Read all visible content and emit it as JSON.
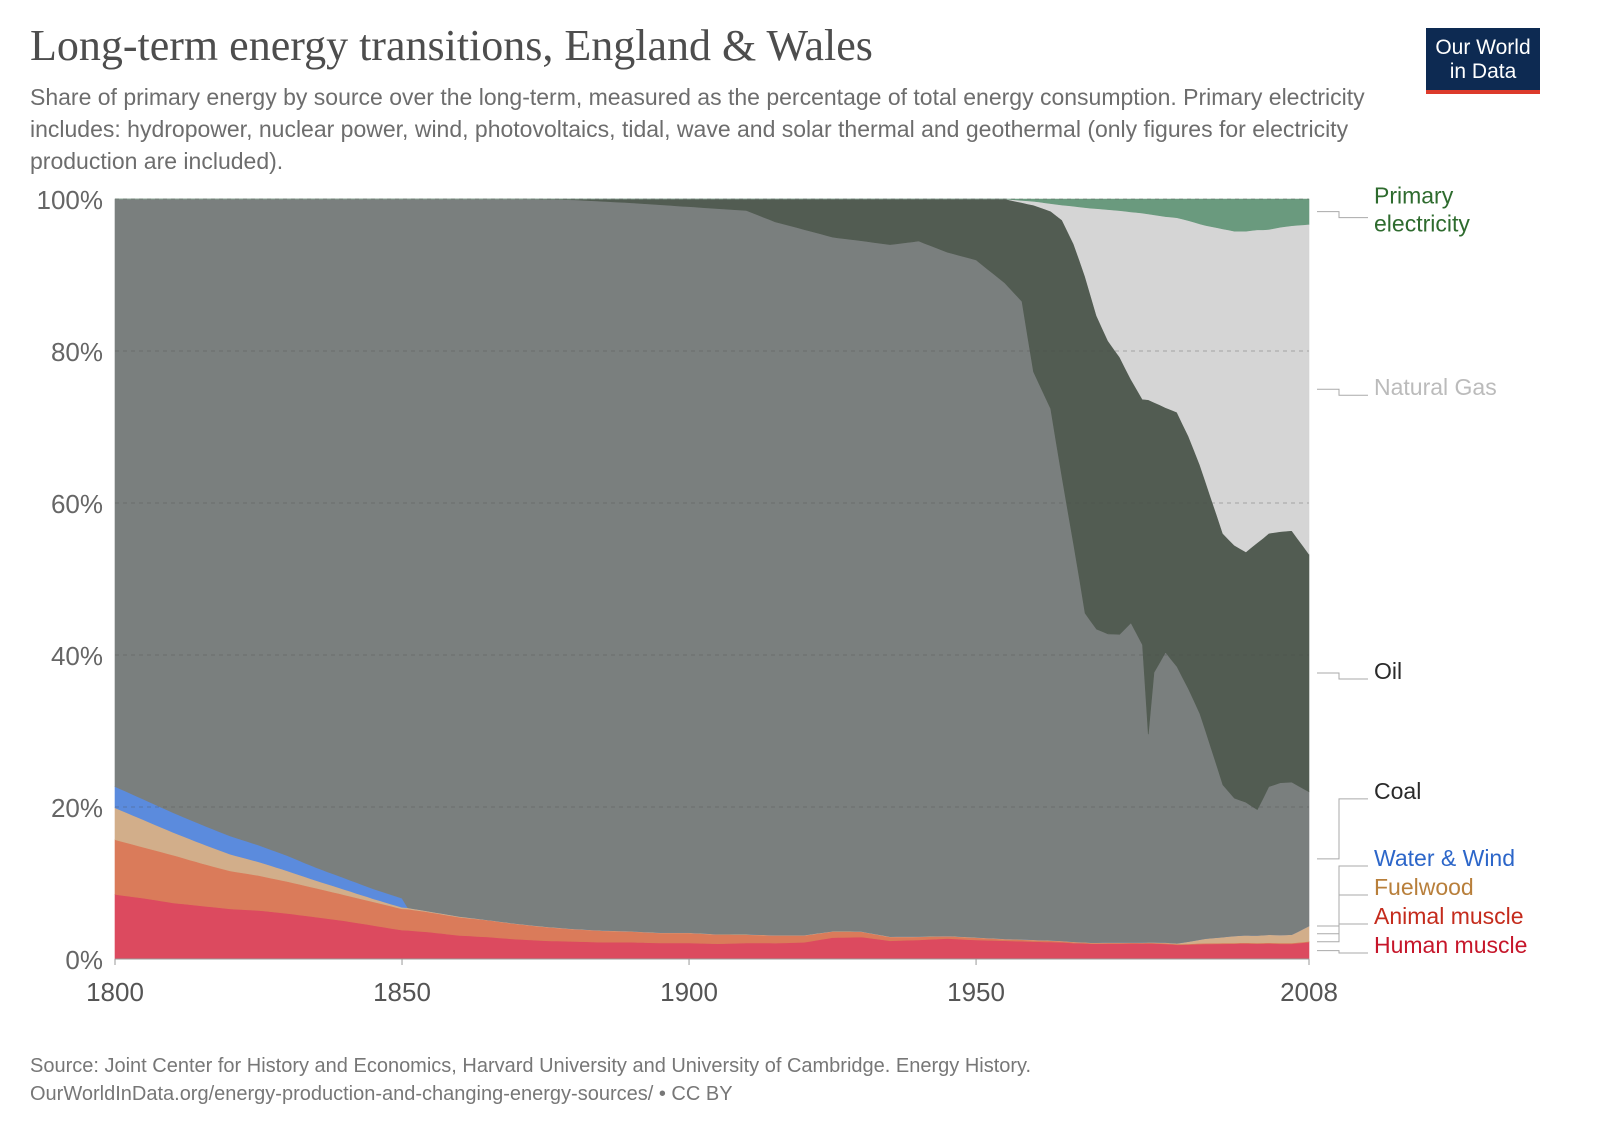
{
  "title": "Long-term energy transitions, England & Wales",
  "subtitle": "Share of primary energy by source over the long-term, measured as the percentage of total energy consumption. Primary electricity includes: hydropower, nuclear power, wind, photovoltaics, tidal, wave and solar thermal and geothermal (only figures for electricity production are included).",
  "logo": {
    "line1": "Our World",
    "line2": "in Data"
  },
  "footer": {
    "source": "Source: Joint Center for History and Economics, Harvard University and University of Cambridge. Energy History.",
    "url": "OurWorldInData.org/energy-production-and-changing-energy-sources/ • CC BY"
  },
  "chart_data": {
    "type": "area",
    "stacked": true,
    "x_label": "",
    "y_label": "",
    "x_range": [
      1800,
      2008
    ],
    "y_range": [
      0,
      100
    ],
    "x_ticks": [
      1800,
      1850,
      1900,
      1950,
      2008
    ],
    "y_ticks": [
      "0%",
      "20%",
      "40%",
      "60%",
      "80%",
      "100%"
    ],
    "grid": "horizontal dashed",
    "legend_position": "right (inline labels)",
    "series": [
      {
        "name": "Human muscle",
        "color": "#dc4a5f",
        "label_color": "#c6162a",
        "points": [
          [
            1800,
            8.5
          ],
          [
            1805,
            8
          ],
          [
            1810,
            7.4
          ],
          [
            1815,
            7
          ],
          [
            1820,
            6.6
          ],
          [
            1825,
            6.4
          ],
          [
            1830,
            6
          ],
          [
            1835,
            5.5
          ],
          [
            1840,
            5
          ],
          [
            1845,
            4.4
          ],
          [
            1850,
            3.8
          ],
          [
            1855,
            3.5
          ],
          [
            1860,
            3.1
          ],
          [
            1865,
            2.9
          ],
          [
            1870,
            2.6
          ],
          [
            1875,
            2.4
          ],
          [
            1880,
            2.3
          ],
          [
            1885,
            2.2
          ],
          [
            1890,
            2.2
          ],
          [
            1895,
            2.1
          ],
          [
            1900,
            2.1
          ],
          [
            1905,
            2
          ],
          [
            1910,
            2.1
          ],
          [
            1915,
            2.1
          ],
          [
            1920,
            2.2
          ],
          [
            1925,
            2.8
          ],
          [
            1930,
            2.9
          ],
          [
            1935,
            2.4
          ],
          [
            1940,
            2.5
          ],
          [
            1945,
            2.7
          ],
          [
            1950,
            2.5
          ],
          [
            1955,
            2.4
          ],
          [
            1960,
            2.3
          ],
          [
            1965,
            2.2
          ],
          [
            1970,
            2
          ],
          [
            1975,
            2
          ],
          [
            1980,
            2.1
          ],
          [
            1985,
            1.9
          ],
          [
            1990,
            2
          ],
          [
            1995,
            2
          ],
          [
            2000,
            2
          ],
          [
            2005,
            2
          ],
          [
            2008,
            2.2
          ]
        ]
      },
      {
        "name": "Animal muscle",
        "color": "#da7b5a",
        "label_color": "#c42b1c",
        "points": [
          [
            1800,
            7.2
          ],
          [
            1805,
            6.7
          ],
          [
            1810,
            6.3
          ],
          [
            1815,
            5.6
          ],
          [
            1820,
            5
          ],
          [
            1825,
            4.6
          ],
          [
            1830,
            4.2
          ],
          [
            1835,
            3.8
          ],
          [
            1840,
            3.4
          ],
          [
            1845,
            3.1
          ],
          [
            1850,
            2.8
          ],
          [
            1855,
            2.6
          ],
          [
            1860,
            2.4
          ],
          [
            1865,
            2.2
          ],
          [
            1870,
            2
          ],
          [
            1875,
            1.8
          ],
          [
            1880,
            1.6
          ],
          [
            1885,
            1.5
          ],
          [
            1890,
            1.4
          ],
          [
            1895,
            1.3
          ],
          [
            1900,
            1.3
          ],
          [
            1905,
            1.2
          ],
          [
            1910,
            1.1
          ],
          [
            1915,
            1
          ],
          [
            1920,
            0.9
          ],
          [
            1925,
            0.8
          ],
          [
            1930,
            0.7
          ],
          [
            1935,
            0.5
          ],
          [
            1940,
            0.4
          ],
          [
            1945,
            0.3
          ],
          [
            1950,
            0.3
          ],
          [
            1955,
            0.2
          ],
          [
            1960,
            0.2
          ],
          [
            1965,
            0.15
          ],
          [
            1970,
            0.1
          ],
          [
            1975,
            0.1
          ],
          [
            1980,
            0.1
          ],
          [
            1985,
            0.1
          ],
          [
            1990,
            0.1
          ],
          [
            1995,
            0.1
          ],
          [
            2000,
            0.1
          ],
          [
            2005,
            0.1
          ],
          [
            2008,
            0.1
          ]
        ]
      },
      {
        "name": "Fuelwood",
        "color": "#d2ae8a",
        "label_color": "#b87f3b",
        "points": [
          [
            1800,
            4.2
          ],
          [
            1805,
            3.6
          ],
          [
            1810,
            3
          ],
          [
            1815,
            2.6
          ],
          [
            1820,
            2.2
          ],
          [
            1825,
            1.8
          ],
          [
            1830,
            1.4
          ],
          [
            1835,
            1
          ],
          [
            1840,
            0.7
          ],
          [
            1845,
            0.4
          ],
          [
            1850,
            0.2
          ],
          [
            1855,
            0.1
          ],
          [
            1860,
            0.1
          ],
          [
            1865,
            0.05
          ],
          [
            1870,
            0.05
          ],
          [
            1875,
            0.05
          ],
          [
            1880,
            0.05
          ],
          [
            1885,
            0.05
          ],
          [
            1890,
            0.05
          ],
          [
            1895,
            0.05
          ],
          [
            1900,
            0.05
          ],
          [
            1905,
            0.05
          ],
          [
            1910,
            0.05
          ],
          [
            1915,
            0.05
          ],
          [
            1920,
            0.05
          ],
          [
            1925,
            0.05
          ],
          [
            1930,
            0.05
          ],
          [
            1935,
            0.05
          ],
          [
            1940,
            0.05
          ],
          [
            1945,
            0.05
          ],
          [
            1950,
            0.05
          ],
          [
            1955,
            0.05
          ],
          [
            1960,
            0.05
          ],
          [
            1965,
            0.05
          ],
          [
            1970,
            0.05
          ],
          [
            1975,
            0.05
          ],
          [
            1980,
            0.05
          ],
          [
            1985,
            0.1
          ],
          [
            1990,
            0.6
          ],
          [
            1995,
            0.9
          ],
          [
            2000,
            1
          ],
          [
            2005,
            1.1
          ],
          [
            2008,
            2
          ]
        ]
      },
      {
        "name": "Water & Wind",
        "color": "#5b8bdd",
        "label_color": "#2c66c9",
        "points": [
          [
            1800,
            2.8
          ],
          [
            1805,
            2.7
          ],
          [
            1810,
            2.6
          ],
          [
            1815,
            2.5
          ],
          [
            1820,
            2.4
          ],
          [
            1825,
            2.2
          ],
          [
            1830,
            2
          ],
          [
            1835,
            1.7
          ],
          [
            1840,
            1.5
          ],
          [
            1845,
            1.3
          ],
          [
            1850,
            1.2
          ],
          [
            1851,
            0
          ],
          [
            2008,
            0
          ]
        ]
      },
      {
        "name": "Coal",
        "color": "#7a7f7e",
        "label_color": "#2a2a2a",
        "points": [
          [
            1800,
            77.3
          ],
          [
            1810,
            80.7
          ],
          [
            1820,
            83.8
          ],
          [
            1830,
            86.4
          ],
          [
            1840,
            89
          ],
          [
            1850,
            92
          ],
          [
            1860,
            94.4
          ],
          [
            1870,
            95.3
          ],
          [
            1880,
            95.5
          ],
          [
            1890,
            95.5
          ],
          [
            1900,
            95
          ],
          [
            1910,
            94.8
          ],
          [
            1915,
            94
          ],
          [
            1920,
            93
          ],
          [
            1925,
            91
          ],
          [
            1930,
            91
          ],
          [
            1935,
            91
          ],
          [
            1940,
            91
          ],
          [
            1945,
            90
          ],
          [
            1950,
            89
          ],
          [
            1955,
            86
          ],
          [
            1958,
            84
          ],
          [
            1960,
            75
          ],
          [
            1963,
            70
          ],
          [
            1965,
            61
          ],
          [
            1967,
            53
          ],
          [
            1969,
            43
          ],
          [
            1971,
            41
          ],
          [
            1973,
            40
          ],
          [
            1975,
            40
          ],
          [
            1977,
            42
          ],
          [
            1979,
            40
          ],
          [
            1980,
            28
          ],
          [
            1981,
            36
          ],
          [
            1983,
            38
          ],
          [
            1985,
            37
          ],
          [
            1987,
            34
          ],
          [
            1989,
            30
          ],
          [
            1991,
            25
          ],
          [
            1993,
            20
          ],
          [
            1995,
            18
          ],
          [
            1997,
            17
          ],
          [
            1999,
            16.5
          ],
          [
            2001,
            19
          ],
          [
            2003,
            20
          ],
          [
            2005,
            20
          ],
          [
            2008,
            17.5
          ]
        ]
      },
      {
        "name": "Oil",
        "color": "#525c52",
        "label_color": "#2a2a2a",
        "points": [
          [
            1800,
            0
          ],
          [
            1870,
            0
          ],
          [
            1880,
            0.1
          ],
          [
            1890,
            0.5
          ],
          [
            1900,
            1
          ],
          [
            1910,
            1.5
          ],
          [
            1915,
            3
          ],
          [
            1920,
            4
          ],
          [
            1925,
            5
          ],
          [
            1930,
            5.5
          ],
          [
            1935,
            6
          ],
          [
            1940,
            5.5
          ],
          [
            1945,
            7
          ],
          [
            1950,
            8
          ],
          [
            1955,
            11
          ],
          [
            1958,
            13
          ],
          [
            1960,
            22
          ],
          [
            1963,
            26
          ],
          [
            1965,
            34
          ],
          [
            1967,
            40
          ],
          [
            1969,
            44
          ],
          [
            1971,
            41
          ],
          [
            1973,
            38
          ],
          [
            1975,
            36
          ],
          [
            1977,
            32
          ],
          [
            1979,
            33
          ],
          [
            1980,
            45
          ],
          [
            1981,
            36
          ],
          [
            1983,
            32
          ],
          [
            1985,
            34
          ],
          [
            1987,
            34
          ],
          [
            1989,
            33
          ],
          [
            1991,
            33
          ],
          [
            1993,
            33
          ],
          [
            1995,
            33
          ],
          [
            1997,
            32
          ],
          [
            1999,
            35
          ],
          [
            2001,
            32.5
          ],
          [
            2003,
            33
          ],
          [
            2005,
            33
          ],
          [
            2008,
            31
          ]
        ]
      },
      {
        "name": "Natural Gas",
        "color": "#d5d5d5",
        "label_color": "#bbbbbb",
        "points": [
          [
            1800,
            0
          ],
          [
            1955,
            0
          ],
          [
            1960,
            0.5
          ],
          [
            1963,
            1
          ],
          [
            1965,
            2
          ],
          [
            1967,
            5
          ],
          [
            1969,
            9
          ],
          [
            1971,
            14
          ],
          [
            1973,
            17
          ],
          [
            1975,
            19
          ],
          [
            1977,
            22
          ],
          [
            1979,
            25
          ],
          [
            1981,
            25
          ],
          [
            1983,
            25
          ],
          [
            1985,
            26
          ],
          [
            1987,
            29
          ],
          [
            1989,
            32
          ],
          [
            1991,
            36
          ],
          [
            1993,
            40
          ],
          [
            1995,
            41
          ],
          [
            1997,
            41
          ],
          [
            1999,
            41
          ],
          [
            2001,
            39
          ],
          [
            2003,
            40
          ],
          [
            2005,
            40
          ],
          [
            2008,
            43
          ]
        ]
      },
      {
        "name": "Primary electricity",
        "color": "#6a9a7e",
        "label_color": "#2e6b2e",
        "points": [
          [
            1800,
            0
          ],
          [
            1955,
            0
          ],
          [
            1960,
            0.3
          ],
          [
            1965,
            0.8
          ],
          [
            1970,
            1.2
          ],
          [
            1975,
            1.5
          ],
          [
            1980,
            2
          ],
          [
            1985,
            2.5
          ],
          [
            1990,
            3.5
          ],
          [
            1995,
            4.2
          ],
          [
            2000,
            4
          ],
          [
            2005,
            3.5
          ],
          [
            2008,
            3.3
          ]
        ]
      }
    ]
  }
}
